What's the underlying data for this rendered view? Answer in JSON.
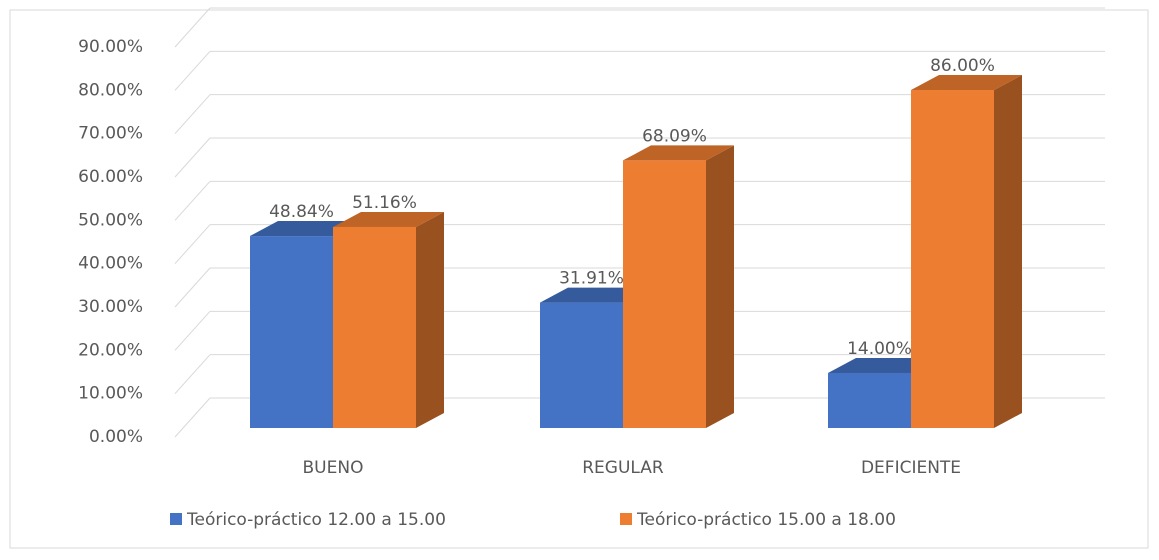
{
  "chart_data": {
    "type": "bar3d",
    "categories": [
      "BUENO",
      "REGULAR",
      "DEFICIENTE"
    ],
    "series": [
      {
        "name": "Teórico-práctico 12.00 a 15.00",
        "color": "#4472c4",
        "values": [
          48.84,
          31.91,
          14.0
        ],
        "value_labels": [
          "48.84%",
          "31.91%",
          "14.00%"
        ]
      },
      {
        "name": "Teórico-práctico 15.00 a 18.00",
        "color": "#ed7d31",
        "values": [
          51.16,
          68.09,
          86.0
        ],
        "value_labels": [
          "51.16%",
          "68.09%",
          "86.00%"
        ]
      }
    ],
    "ylim": [
      0,
      90
    ],
    "yticks": [
      {
        "value": 0,
        "label": "0.00%"
      },
      {
        "value": 10,
        "label": "10.00%"
      },
      {
        "value": 20,
        "label": "20.00%"
      },
      {
        "value": 30,
        "label": "30.00%"
      },
      {
        "value": 40,
        "label": "40.00%"
      },
      {
        "value": 50,
        "label": "50.00%"
      },
      {
        "value": 60,
        "label": "60.00%"
      },
      {
        "value": 70,
        "label": "70.00%"
      },
      {
        "value": 80,
        "label": "80.00%"
      },
      {
        "value": 90,
        "label": "90.00%"
      }
    ],
    "grid": true,
    "legend": "bottom"
  }
}
